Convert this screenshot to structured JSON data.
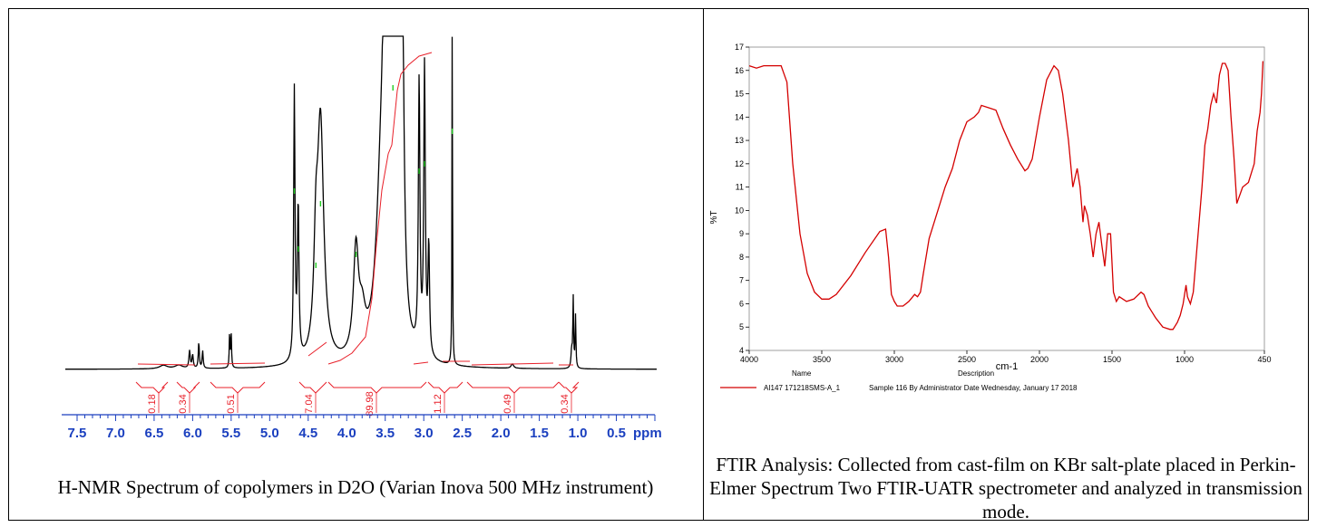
{
  "chart_data": [
    {
      "type": "line",
      "title": "",
      "caption": "H-NMR Spectrum of copolymers in D2O (Varian Inova 500 MHz instrument)",
      "x_unit_label": "ppm",
      "x_ticks": [
        "7.5",
        "7.0",
        "6.5",
        "6.0",
        "5.5",
        "5.0",
        "4.5",
        "4.0",
        "3.5",
        "3.0",
        "2.5",
        "2.0",
        "1.5",
        "1.0",
        "0.5"
      ],
      "xlim": [
        7.7,
        0.0
      ],
      "integrals": [
        "0.18",
        "0.34",
        "0.51",
        "7.04",
        "89.98",
        "1.12",
        "0.49",
        "0.34"
      ],
      "line_color": "#000000",
      "integral_color": "#e8202a",
      "peak_marker_color": "#22cc22"
    },
    {
      "type": "line",
      "title": "",
      "caption": "FTIR Analysis: Collected from cast-film on KBr salt-plate placed in Perkin-Elmer Spectrum Two FTIR-UATR spectrometer and analyzed in transmission mode.",
      "xlabel": "cm-1",
      "ylabel": "%T",
      "xlim": [
        4000,
        450
      ],
      "ylim": [
        4,
        17
      ],
      "x_ticks": [
        "4000",
        "3500",
        "3000",
        "2500",
        "2000",
        "1500",
        "1000",
        "450"
      ],
      "y_ticks": [
        "4",
        "5",
        "6",
        "7",
        "8",
        "9",
        "10",
        "11",
        "12",
        "13",
        "14",
        "15",
        "16",
        "17"
      ],
      "legend": {
        "name_header": "Name",
        "description_header": "Description",
        "entry_name": "AI147 171218SMS-A_1",
        "entry_description": "Sample 116 By Administrator Date Wednesday, January 17 2018"
      },
      "line_color": "#d40000",
      "series": [
        {
          "x": [
            4000,
            3950,
            3900,
            3850,
            3780,
            3740,
            3700,
            3650,
            3600,
            3550,
            3500,
            3450,
            3400,
            3300,
            3200,
            3100,
            3060,
            3040,
            3020,
            3000,
            2980,
            2940,
            2900,
            2860,
            2840,
            2820,
            2800,
            2760,
            2700,
            2650,
            2600,
            2550,
            2500,
            2450,
            2420,
            2400,
            2350,
            2300,
            2250,
            2200,
            2150,
            2100,
            2080,
            2050,
            2000,
            1950,
            1900,
            1870,
            1840,
            1800,
            1770,
            1740,
            1720,
            1700,
            1690,
            1670,
            1650,
            1630,
            1610,
            1590,
            1570,
            1550,
            1530,
            1510,
            1490,
            1470,
            1450,
            1400,
            1350,
            1300,
            1280,
            1250,
            1200,
            1150,
            1100,
            1080,
            1050,
            1030,
            1010,
            990,
            980,
            960,
            940,
            920,
            900,
            880,
            860,
            840,
            820,
            800,
            780,
            760,
            740,
            720,
            700,
            680,
            660,
            640,
            600,
            560,
            520,
            500,
            480,
            470,
            460
          ],
          "y": [
            16.2,
            16.1,
            16.2,
            16.2,
            16.2,
            15.5,
            12.0,
            9.0,
            7.3,
            6.5,
            6.2,
            6.2,
            6.4,
            7.2,
            8.2,
            9.1,
            9.2,
            8.0,
            6.4,
            6.1,
            5.9,
            5.9,
            6.1,
            6.4,
            6.3,
            6.5,
            7.3,
            8.8,
            10.0,
            11.0,
            11.8,
            13.0,
            13.8,
            14.0,
            14.2,
            14.5,
            14.4,
            14.3,
            13.5,
            12.8,
            12.2,
            11.7,
            11.8,
            12.2,
            14.0,
            15.6,
            16.2,
            16.0,
            15.0,
            13.0,
            11.0,
            11.8,
            11.0,
            9.5,
            10.2,
            9.8,
            9.0,
            8.0,
            9.0,
            9.5,
            8.5,
            7.6,
            9.0,
            9.0,
            6.5,
            6.1,
            6.3,
            6.1,
            6.2,
            6.5,
            6.4,
            5.9,
            5.4,
            5.0,
            4.9,
            4.9,
            5.2,
            5.5,
            6.0,
            6.8,
            6.3,
            6.0,
            6.5,
            8.0,
            9.5,
            11.0,
            12.8,
            13.5,
            14.5,
            15.0,
            14.6,
            15.8,
            16.3,
            16.3,
            16.0,
            14.0,
            12.3,
            10.3,
            11.0,
            11.2,
            12.0,
            13.4,
            14.2,
            15.0,
            16.4
          ]
        }
      ]
    }
  ]
}
